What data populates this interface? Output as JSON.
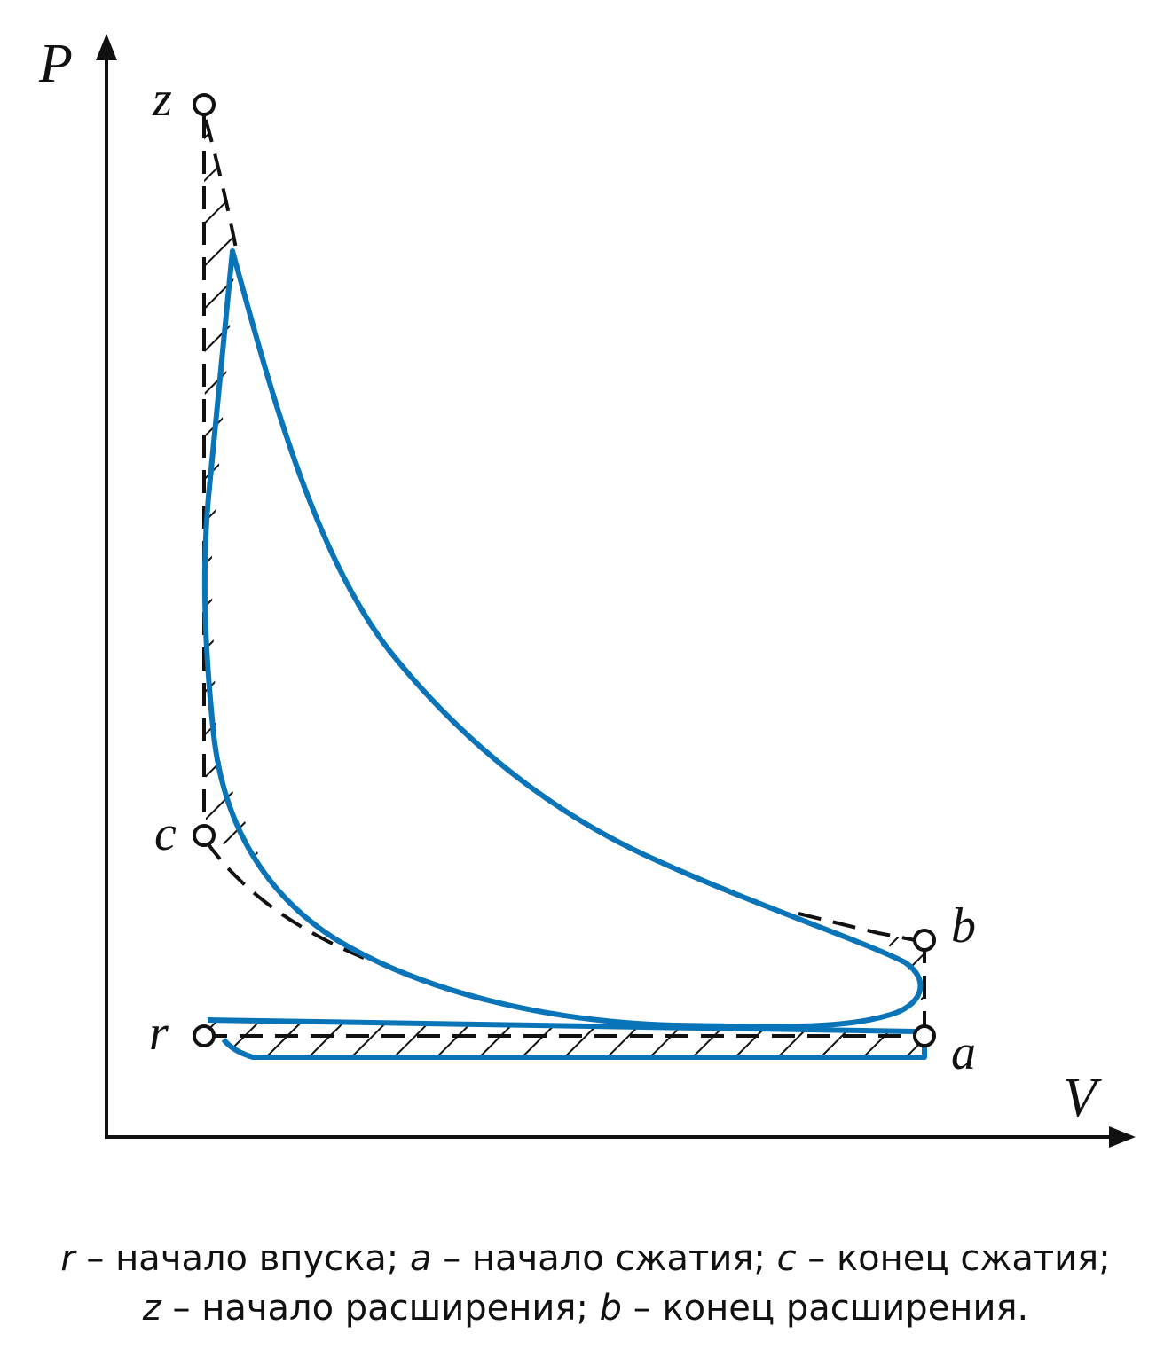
{
  "axes": {
    "y_label": "P",
    "x_label": "V"
  },
  "points": [
    {
      "label": "z"
    },
    {
      "label": "c"
    },
    {
      "label": "b"
    },
    {
      "label": "r"
    },
    {
      "label": "a"
    }
  ],
  "caption": {
    "lines": [
      [
        {
          "symbol": "r",
          "text": "– начало впуска;"
        },
        {
          "symbol": "a",
          "text": "– начало сжатия;"
        },
        {
          "symbol": "c",
          "text": "– конец сжатия;"
        }
      ],
      [
        {
          "symbol": "z",
          "text": "– начало расширения;"
        },
        {
          "symbol": "b",
          "text": "– конец расширения."
        }
      ]
    ]
  }
}
